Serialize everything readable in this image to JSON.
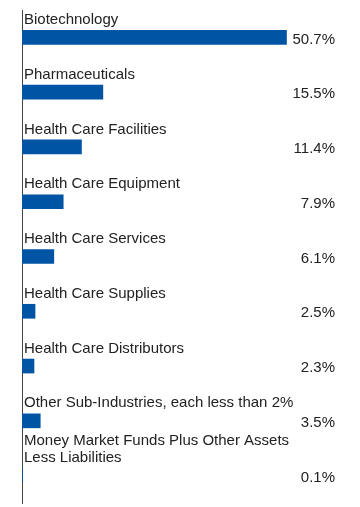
{
  "chart_data": {
    "type": "bar",
    "orientation": "horizontal",
    "categories": [
      "Biotechnology",
      "Pharmaceuticals",
      "Health Care Facilities",
      "Health Care Equipment",
      "Health Care Services",
      "Health Care Supplies",
      "Health Care Distributors",
      "Other Sub-Industries, each less than 2%",
      "Money Market Funds Plus Other Assets Less Liabilities"
    ],
    "values": [
      50.7,
      15.5,
      11.4,
      7.9,
      6.1,
      2.5,
      2.3,
      3.5,
      0.1
    ],
    "value_labels": [
      "50.7%",
      "15.5%",
      "11.4%",
      "7.9%",
      "6.1%",
      "2.5%",
      "2.3%",
      "3.5%",
      "0.1%"
    ],
    "color": "#0054a4",
    "data_labels": true,
    "tick_labels": false,
    "grid": false
  }
}
